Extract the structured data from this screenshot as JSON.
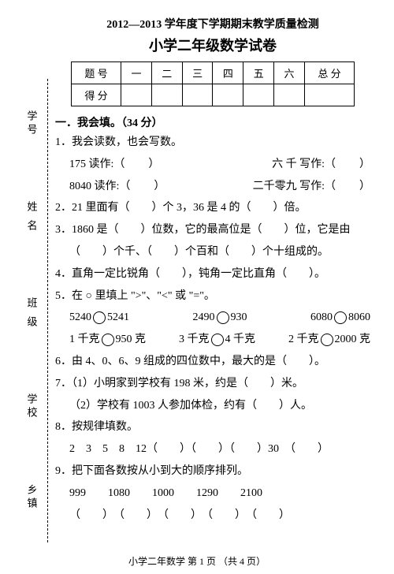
{
  "header": {
    "line1": "2012—2013 学年度下学期期末教学质量检测",
    "line2": "小学二年级数学试卷"
  },
  "score_table": {
    "row1": [
      "题 号",
      "一",
      "二",
      "三",
      "四",
      "五",
      "六",
      "总 分"
    ],
    "row2_label": "得 分"
  },
  "binding": {
    "school": "学校",
    "class": "班 级",
    "name": "姓 名",
    "town": "乡镇",
    "id": "学号"
  },
  "sections": {
    "s1": "一．我会填。（34 分）"
  },
  "q1": {
    "label": "1．我会读数，也会写数。",
    "r1a": "175 读作:（",
    "r1b": "）",
    "r1c": "六 千 写作:（",
    "r1d": "）",
    "r2a": "8040 读作:（",
    "r2b": "）",
    "r2c": "二千零九 写作:（",
    "r2d": "）"
  },
  "q2": {
    "text": "2．21 里面有（　　）个 3，36 是 4 的（　　）倍。"
  },
  "q3": {
    "line1": "3．1860 是（　　）位数，它的最高位是（　　）位，它是由",
    "line2": "（　　）个千、（　　）个百和（　　）个十组成的。"
  },
  "q4": {
    "text": "4．直角一定比锐角（　　），钝角一定比直角（　　）。"
  },
  "q5": {
    "label": "5．在 ○ 里填上 \">\"、\"<\" 或 \"=\"。",
    "r1": [
      "5240",
      "5241",
      "2490",
      "930",
      "6080",
      "8060"
    ],
    "r2": [
      "1 千克",
      "950 克",
      "3 千克",
      "4 千克",
      "2 千克",
      "2000 克"
    ]
  },
  "q6": {
    "text": "6．由 4、0、6、9 组成的四位数中，最大的是（　　）。"
  },
  "q7": {
    "line1": "7．（1）小明家到学校有 198 米，约是（　　）米。",
    "line2": "（2）学校有 1003 人参加体检，约有（　　）人。"
  },
  "q8": {
    "label": "8．按规律填数。",
    "seq": "2　3　5　8　12（　　）（　　）（　　）30　（　　）"
  },
  "q9": {
    "label": "9．把下面各数按从小到大的顺序排列。",
    "nums": "999　　1080　　1000　　1290　　2100",
    "blanks": "（　　）　（　　）　（　　）　（　　）　（　　）"
  },
  "footer": "小学二年数学 第 1 页 （共 4 页）"
}
